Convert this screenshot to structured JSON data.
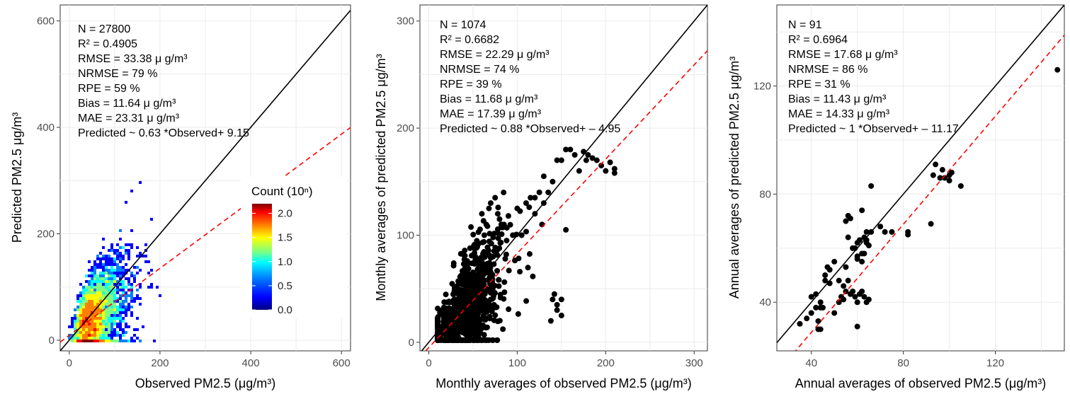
{
  "chart_data": [
    {
      "type": "heatmap",
      "xlabel": "Observed PM2.5 (μg/m³)",
      "ylabel": "Predicted PM2.5 μg/m³",
      "xlim": [
        -20,
        620
      ],
      "ylim": [
        -20,
        630
      ],
      "xticks": [
        0,
        200,
        400,
        600
      ],
      "yticks": [
        0,
        200,
        400,
        600
      ],
      "grid": true,
      "stats": {
        "n": "N = 27800",
        "r2": "R² = 0.4905",
        "rmse": "RMSE = 33.38 μ g/m³",
        "nrmse": "NRMSE = 79 %",
        "rpe": "RPE = 59 %",
        "bias": "Bias = 11.64 μ g/m³",
        "mae": "MAE = 23.31 μ g/m³",
        "fit": "Predicted ~ 0.63 *Observed+ 9.15"
      },
      "fit_line": {
        "slope": 0.63,
        "intercept": 9.15
      },
      "colorbar": {
        "title": "Count (10ⁿ)",
        "min": 0,
        "max": 2.2,
        "ticks": [
          "2.0",
          "1.5",
          "1.0",
          "0.5",
          "0.0"
        ],
        "tick_values": [
          2.0,
          1.5,
          1.0,
          0.5,
          0.0
        ],
        "colors": [
          "#00007f",
          "#0000ff",
          "#007fff",
          "#00ffff",
          "#7fff7f",
          "#ffff00",
          "#ff7f00",
          "#ff0000",
          "#7f0000"
        ]
      },
      "density": {
        "center_x": 30,
        "center_y": 25,
        "points": 4200,
        "max_x": 400,
        "max_y": 320
      }
    },
    {
      "type": "scatter",
      "xlabel": "Monthly averages of observed PM2.5 (μg/m³)",
      "ylabel": "Monthly averages of predicted PM2.5 μg/m³",
      "xlim": [
        -10,
        315
      ],
      "ylim": [
        -8,
        315
      ],
      "xticks": [
        0,
        100,
        200,
        300
      ],
      "yticks": [
        0,
        100,
        200,
        300
      ],
      "grid": true,
      "stats": {
        "n": "N = 1074",
        "r2": "R² = 0.6682",
        "rmse": "RMSE = 22.29 μ g/m³",
        "nrmse": "NRMSE = 74 %",
        "rpe": "RPE = 39 %",
        "bias": "Bias = 11.68 μ g/m³",
        "mae": "MAE = 17.39 μ g/m³",
        "fit": "Predicted ~ 0.88 *Observed+ – 4.95"
      },
      "fit_line": {
        "slope": 0.88,
        "intercept": -4.95
      },
      "x": [
        180,
        185,
        190,
        195,
        200,
        205,
        210,
        175,
        178,
        170,
        165,
        160,
        155,
        150,
        145,
        140,
        135,
        130,
        125,
        120,
        140,
        145,
        150,
        155,
        100,
        110,
        115,
        120,
        90,
        85,
        80,
        95,
        105,
        210,
        150,
        145,
        142,
        138,
        130,
        128,
        70,
        75,
        78,
        82,
        88,
        60,
        65,
        68
      ],
      "y": [
        175,
        172,
        170,
        165,
        160,
        168,
        162,
        178,
        170,
        160,
        175,
        180,
        180,
        170,
        170,
        150,
        140,
        155,
        140,
        135,
        40,
        30,
        40,
        105,
        125,
        130,
        135,
        120,
        118,
        110,
        115,
        100,
        100,
        158,
        25,
        35,
        45,
        20,
        130,
        110,
        130,
        135,
        120,
        110,
        95,
        120,
        110,
        125
      ],
      "cloud": {
        "center_x": 45,
        "center_y": 35,
        "points": 900
      }
    },
    {
      "type": "scatter",
      "xlabel": "Annual averages of observed PM2.5 (μg/m³)",
      "ylabel": "Annual averages of predicted PM2.5 μg/m³",
      "xlim": [
        25,
        150
      ],
      "ylim": [
        22,
        150
      ],
      "xticks": [
        40,
        80,
        120
      ],
      "yticks": [
        40,
        80,
        120
      ],
      "grid": true,
      "stats": {
        "n": "N = 91",
        "r2": "R² = 0.6964",
        "rmse": "RMSE = 17.68 μ g/m³",
        "nrmse": "NRMSE = 86 %",
        "rpe": "RPE = 31 %",
        "bias": "Bias = 11.43 μ g/m³",
        "mae": "MAE = 14.33 μ g/m³",
        "fit": "Predicted ~ 1 *Observed+ – 11.17"
      },
      "fit_line": {
        "slope": 1.0,
        "intercept": -11.17
      },
      "x": [
        35,
        38,
        40,
        42,
        43,
        44,
        45,
        46,
        48,
        50,
        52,
        53,
        54,
        55,
        56,
        57,
        58,
        59,
        60,
        60,
        61,
        62,
        63,
        64,
        65,
        58,
        60,
        62,
        63,
        64,
        65,
        66,
        55,
        56,
        57,
        59,
        60,
        61,
        62,
        63,
        40,
        42,
        44,
        46,
        48,
        50,
        52,
        54,
        56,
        58,
        60,
        62,
        64,
        66,
        70,
        72,
        75,
        82,
        82,
        92,
        93,
        94,
        96,
        97,
        98,
        100,
        100,
        101,
        105,
        147,
        64,
        55,
        44,
        47,
        43
      ],
      "y": [
        32,
        34,
        36,
        38,
        30,
        40,
        38,
        48,
        47,
        36,
        40,
        42,
        41,
        44,
        48,
        43,
        44,
        42,
        40,
        31,
        43,
        44,
        42,
        40,
        41,
        60,
        62,
        58,
        64,
        63,
        61,
        83,
        70,
        72,
        71,
        60,
        57,
        63,
        74,
        58,
        42,
        43,
        38,
        50,
        52,
        55,
        48,
        46,
        64,
        60,
        56,
        55,
        66,
        66,
        68,
        66,
        66,
        65,
        66,
        69,
        87,
        91,
        86,
        89,
        86,
        85,
        87,
        88,
        83,
        126,
        62,
        53,
        30,
        53,
        33
      ]
    }
  ]
}
